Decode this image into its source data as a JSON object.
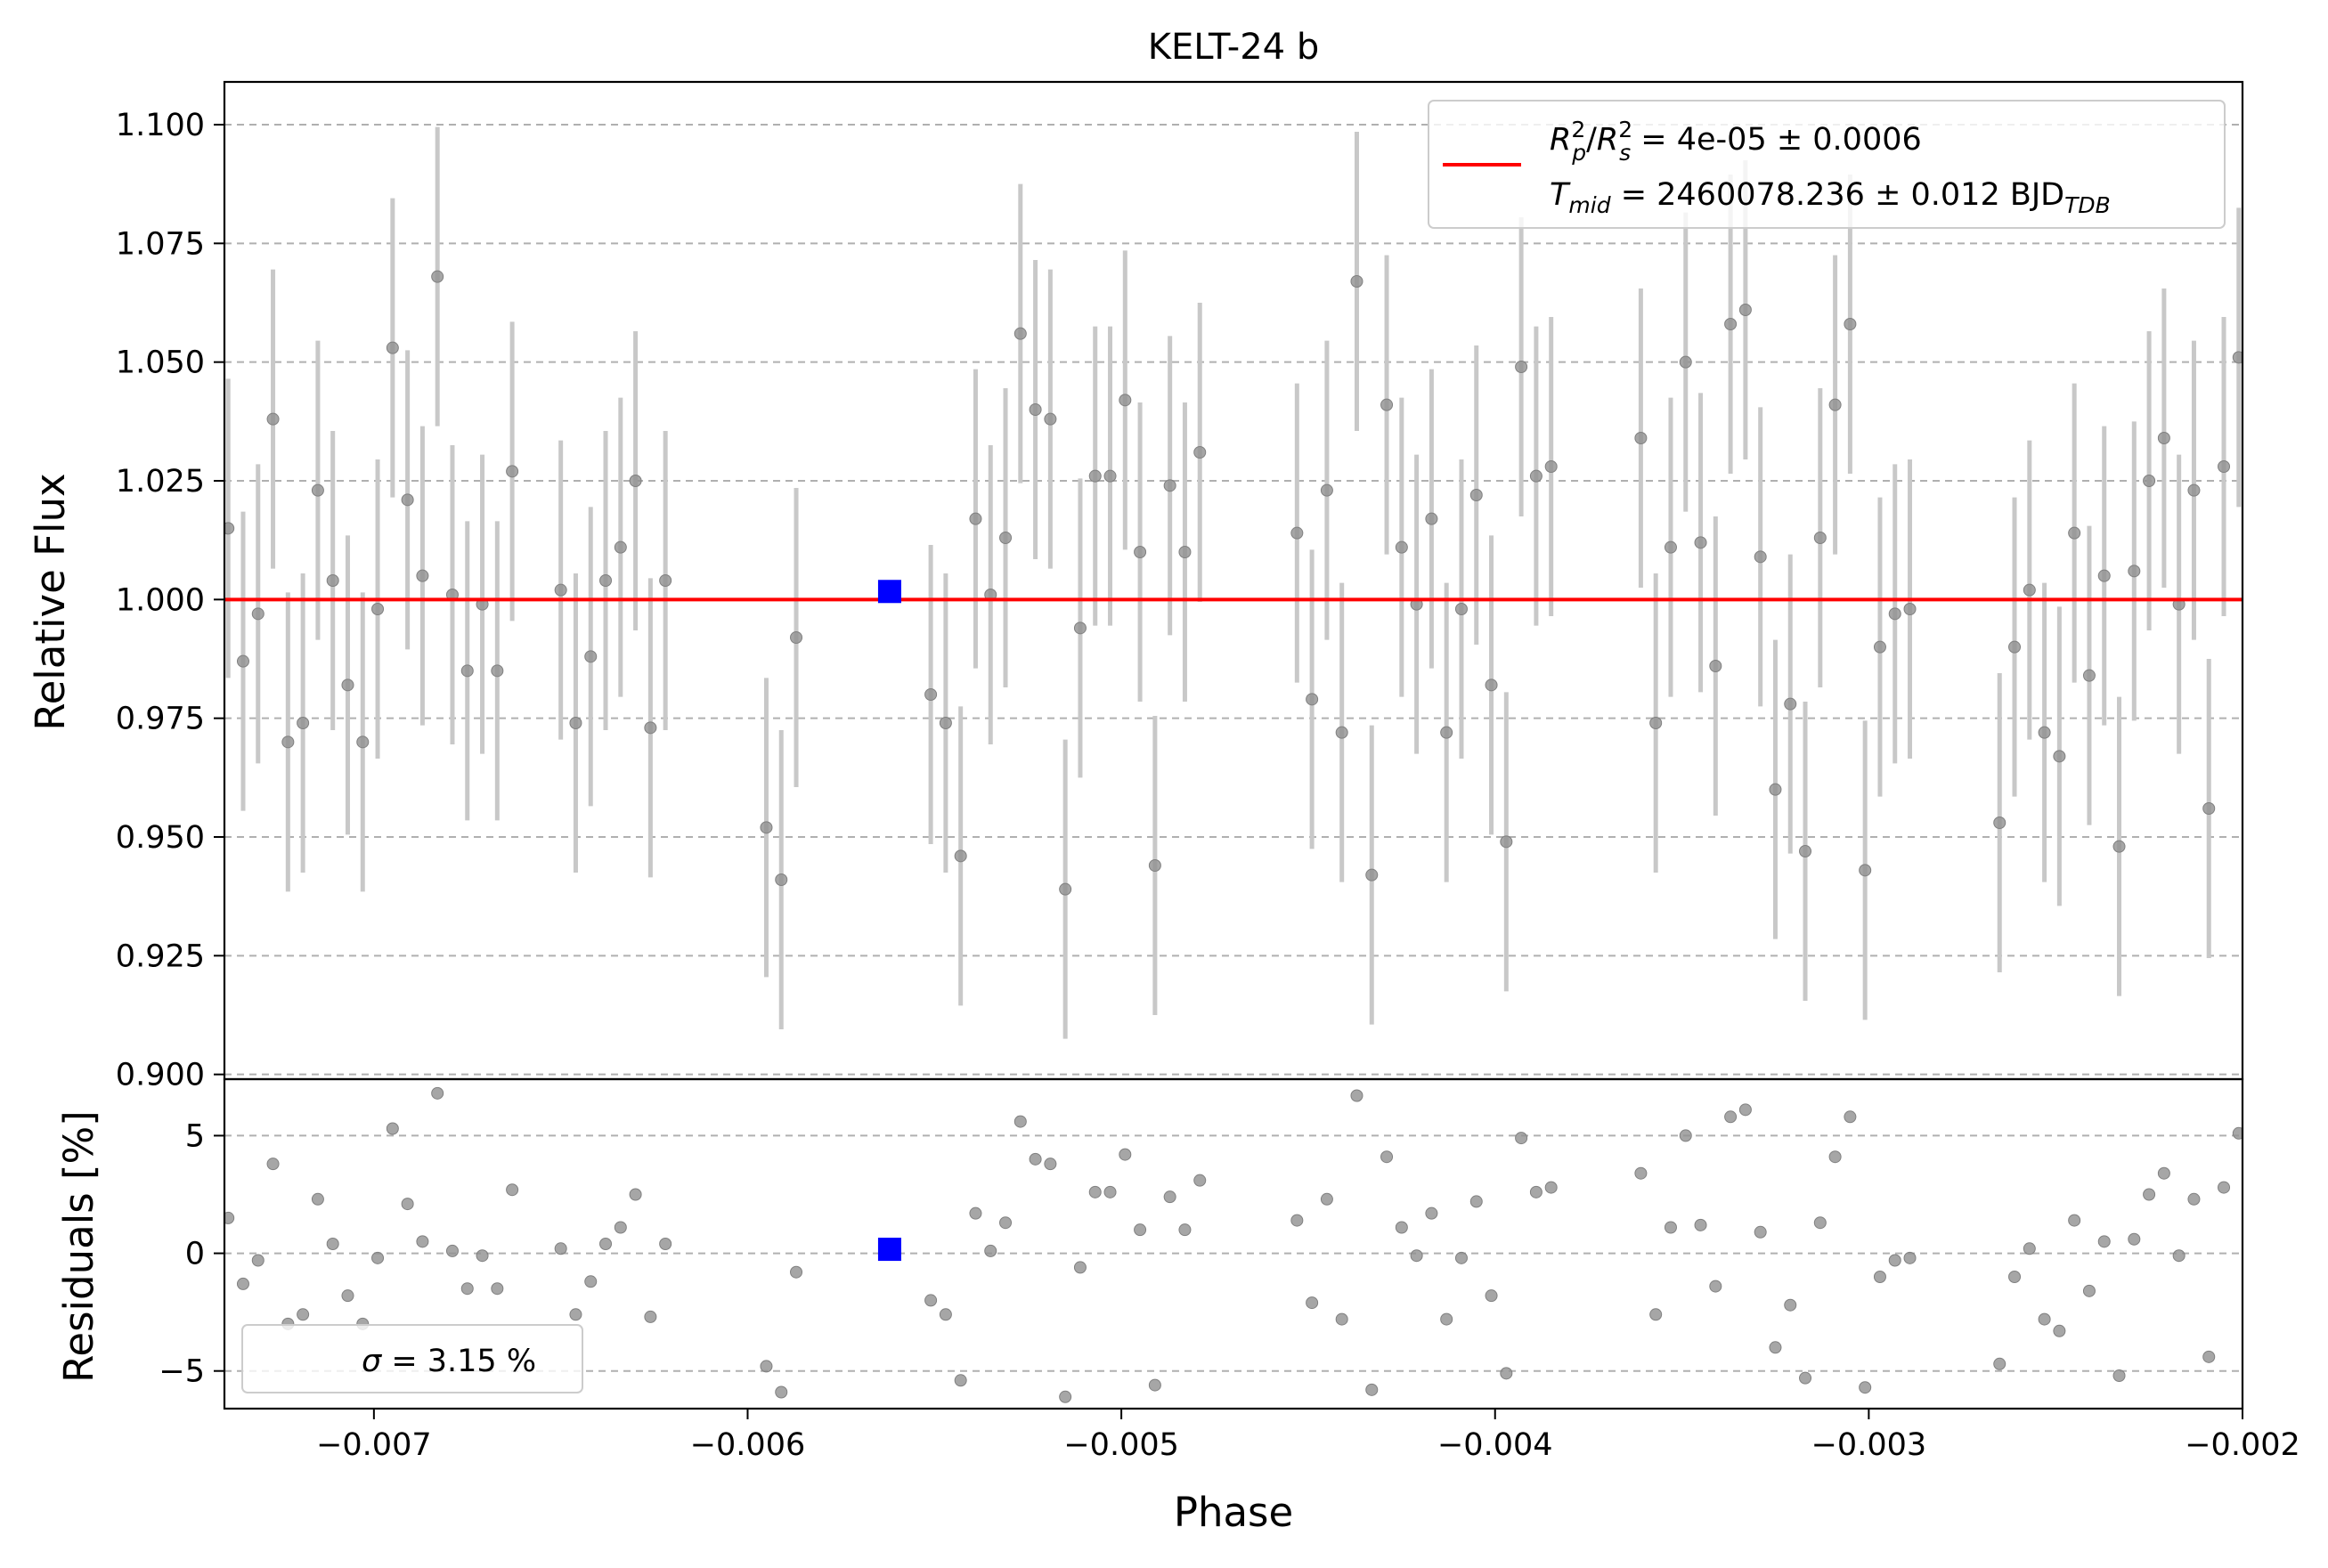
{
  "chart_data": [
    {
      "type": "scatter",
      "title": "KELT-24 b",
      "xlabel": "",
      "ylabel": "Relative Flux",
      "xlim": [
        -0.0074,
        -0.002
      ],
      "ylim": [
        0.899,
        1.109
      ],
      "grid": "horizontal-dashed",
      "xticks": [
        -0.007,
        -0.006,
        -0.005,
        -0.004,
        -0.003,
        -0.002
      ],
      "xtick_labels": [
        "−0.007",
        "−0.006",
        "−0.005",
        "−0.004",
        "−0.003",
        "−0.002"
      ],
      "yticks": [
        0.9,
        0.925,
        0.95,
        0.975,
        1.0,
        1.025,
        1.05,
        1.075,
        1.1
      ],
      "ytick_labels": [
        "0.900",
        "0.925",
        "0.950",
        "0.975",
        "1.000",
        "1.025",
        "1.050",
        "1.075",
        "1.100"
      ],
      "legend": {
        "placement": "top-right",
        "line1": {
          "r": "R",
          "p": "p",
          "two": "2",
          "slash": "/",
          "s": "s",
          "rest": " = 4e-05 ± 0.0006"
        },
        "line2": {
          "t": "T",
          "mid": "mid",
          "rest": " = 2460078.236 ± 0.012 BJD",
          "tdb": "TDB"
        }
      },
      "model": {
        "y": 1.0,
        "color": "#ff0000"
      },
      "binned": {
        "x": -0.00562,
        "y": 1.0017,
        "err": 0.0022,
        "color": "#0000ff"
      },
      "error_bar": 0.0315,
      "x": [
        -0.00739,
        -0.00735,
        -0.00731,
        -0.00727,
        -0.00723,
        -0.00719,
        -0.00715,
        -0.00711,
        -0.00707,
        -0.00703,
        -0.00699,
        -0.00695,
        -0.00691,
        -0.00687,
        -0.00683,
        -0.00679,
        -0.00675,
        -0.00671,
        -0.00667,
        -0.00663,
        -0.0065,
        -0.00646,
        -0.00642,
        -0.00638,
        -0.00634,
        -0.0063,
        -0.00626,
        -0.00622,
        -0.00595,
        -0.00591,
        -0.00587,
        -0.00551,
        -0.00547,
        -0.00543,
        -0.00539,
        -0.00535,
        -0.00531,
        -0.00527,
        -0.00523,
        -0.00519,
        -0.00515,
        -0.00511,
        -0.00507,
        -0.00503,
        -0.00499,
        -0.00495,
        -0.00491,
        -0.00487,
        -0.00483,
        -0.00479,
        -0.00453,
        -0.00449,
        -0.00445,
        -0.00441,
        -0.00437,
        -0.00433,
        -0.00429,
        -0.00425,
        -0.00421,
        -0.00417,
        -0.00413,
        -0.00409,
        -0.00405,
        -0.00401,
        -0.00397,
        -0.00393,
        -0.00389,
        -0.00385,
        -0.00361,
        -0.00357,
        -0.00353,
        -0.00349,
        -0.00345,
        -0.00341,
        -0.00337,
        -0.00333,
        -0.00329,
        -0.00325,
        -0.00321,
        -0.00317,
        -0.00313,
        -0.00309,
        -0.00305,
        -0.00301,
        -0.00297,
        -0.00293,
        -0.00289,
        -0.00265,
        -0.00261,
        -0.00257,
        -0.00253,
        -0.00249,
        -0.00245,
        -0.00241,
        -0.00237,
        -0.00233,
        -0.00229,
        -0.00225,
        -0.00221,
        -0.00217,
        -0.00213,
        -0.00209,
        -0.00205,
        -0.00201
      ],
      "y": [
        1.015,
        0.987,
        0.997,
        1.038,
        0.97,
        0.974,
        1.023,
        1.004,
        0.982,
        0.97,
        0.998,
        1.053,
        1.021,
        1.005,
        1.068,
        1.001,
        0.985,
        0.999,
        0.985,
        1.027,
        1.002,
        0.974,
        0.988,
        1.004,
        1.011,
        1.025,
        0.973,
        1.004,
        0.952,
        0.941,
        0.992,
        0.98,
        0.974,
        0.946,
        1.017,
        1.001,
        1.013,
        1.056,
        1.04,
        1.038,
        0.939,
        0.994,
        1.026,
        1.026,
        1.042,
        1.01,
        0.944,
        1.024,
        1.01,
        1.031,
        1.014,
        0.979,
        1.023,
        0.972,
        1.067,
        0.942,
        1.041,
        1.011,
        0.999,
        1.017,
        0.972,
        0.998,
        1.022,
        0.982,
        0.949,
        1.049,
        1.026,
        1.028,
        1.034,
        0.974,
        1.011,
        1.05,
        1.012,
        0.986,
        1.058,
        1.061,
        1.009,
        0.96,
        0.978,
        0.947,
        1.013,
        1.041,
        1.058,
        0.943,
        0.99,
        0.997,
        0.998,
        0.953,
        0.99,
        1.002,
        0.972,
        0.967,
        1.014,
        0.984,
        1.005,
        0.948,
        1.006,
        1.025,
        1.034,
        0.999,
        1.023,
        0.956,
        1.028,
        1.051
      ]
    },
    {
      "type": "scatter",
      "xlabel": "Phase",
      "ylabel": "Residuals [%]",
      "xlim": [
        -0.0074,
        -0.002
      ],
      "ylim": [
        -6.6,
        7.4
      ],
      "grid": "horizontal-dashed",
      "yticks": [
        -5,
        0,
        5
      ],
      "ytick_labels": [
        "−5",
        "0",
        "5"
      ],
      "legend": {
        "placement": "bottom-left",
        "sigma": "σ",
        "text": " = 3.15 %"
      },
      "binned": {
        "x": -0.00562,
        "y": 0.17,
        "color": "#0000ff"
      },
      "x": [
        -0.00739,
        -0.00735,
        -0.00731,
        -0.00727,
        -0.00723,
        -0.00719,
        -0.00715,
        -0.00711,
        -0.00707,
        -0.00703,
        -0.00699,
        -0.00695,
        -0.00691,
        -0.00687,
        -0.00683,
        -0.00679,
        -0.00675,
        -0.00671,
        -0.00667,
        -0.00663,
        -0.0065,
        -0.00646,
        -0.00642,
        -0.00638,
        -0.00634,
        -0.0063,
        -0.00626,
        -0.00622,
        -0.00595,
        -0.00591,
        -0.00587,
        -0.00551,
        -0.00547,
        -0.00543,
        -0.00539,
        -0.00535,
        -0.00531,
        -0.00527,
        -0.00523,
        -0.00519,
        -0.00515,
        -0.00511,
        -0.00507,
        -0.00503,
        -0.00499,
        -0.00495,
        -0.00491,
        -0.00487,
        -0.00483,
        -0.00479,
        -0.00453,
        -0.00449,
        -0.00445,
        -0.00441,
        -0.00437,
        -0.00433,
        -0.00429,
        -0.00425,
        -0.00421,
        -0.00417,
        -0.00413,
        -0.00409,
        -0.00405,
        -0.00401,
        -0.00397,
        -0.00393,
        -0.00389,
        -0.00385,
        -0.00361,
        -0.00357,
        -0.00353,
        -0.00349,
        -0.00345,
        -0.00341,
        -0.00337,
        -0.00333,
        -0.00329,
        -0.00325,
        -0.00321,
        -0.00317,
        -0.00313,
        -0.00309,
        -0.00305,
        -0.00301,
        -0.00297,
        -0.00293,
        -0.00289,
        -0.00265,
        -0.00261,
        -0.00257,
        -0.00253,
        -0.00249,
        -0.00245,
        -0.00241,
        -0.00237,
        -0.00233,
        -0.00229,
        -0.00225,
        -0.00221,
        -0.00217,
        -0.00213,
        -0.00209,
        -0.00205,
        -0.00201
      ],
      "y": [
        1.5,
        -1.3,
        -0.3,
        3.8,
        -3.0,
        -2.6,
        2.3,
        0.4,
        -1.8,
        -3.0,
        -0.2,
        5.3,
        2.1,
        0.5,
        6.8,
        0.1,
        -1.5,
        -0.1,
        -1.5,
        2.7,
        0.2,
        -2.6,
        -1.2,
        0.4,
        1.1,
        2.5,
        -2.7,
        0.4,
        -4.8,
        -5.9,
        -0.8,
        -2.0,
        -2.6,
        -5.4,
        1.7,
        0.1,
        1.3,
        5.6,
        4.0,
        3.8,
        -6.1,
        -0.6,
        2.6,
        2.6,
        4.2,
        1.0,
        -5.6,
        2.4,
        1.0,
        3.1,
        1.4,
        -2.1,
        2.3,
        -2.8,
        6.7,
        -5.8,
        4.1,
        1.1,
        -0.1,
        1.7,
        -2.8,
        -0.2,
        2.2,
        -1.8,
        -5.1,
        4.9,
        2.6,
        2.8,
        3.4,
        -2.6,
        1.1,
        5.0,
        1.2,
        -1.4,
        5.8,
        6.1,
        0.9,
        -4.0,
        -2.2,
        -5.3,
        1.3,
        4.1,
        5.8,
        -5.7,
        -1.0,
        -0.3,
        -0.2,
        -4.7,
        -1.0,
        0.2,
        -2.8,
        -3.3,
        1.4,
        -1.6,
        0.5,
        -5.2,
        0.6,
        2.5,
        3.4,
        -0.1,
        2.3,
        -4.4,
        2.8,
        5.1
      ]
    }
  ]
}
